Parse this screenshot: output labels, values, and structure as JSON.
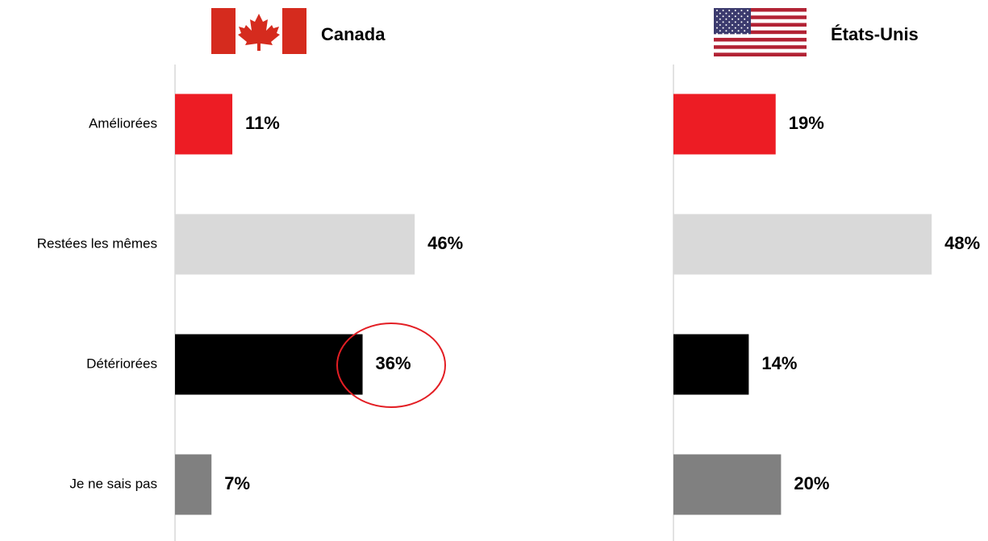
{
  "chart_data": {
    "type": "bar",
    "orientation": "horizontal",
    "categories": [
      "Améliorées",
      "Restées les mêmes",
      "Détériorées",
      "Je ne sais pas"
    ],
    "colors": [
      "#ed1c24",
      "#d9d9d9",
      "#000000",
      "#808080"
    ],
    "xlim": [
      0,
      100
    ],
    "series": [
      {
        "name": "Canada",
        "values": [
          11,
          46,
          36,
          7
        ],
        "value_labels": [
          "11%",
          "46%",
          "36%",
          "7%"
        ]
      },
      {
        "name": "États-Unis",
        "values": [
          19,
          48,
          14,
          20
        ],
        "value_labels": [
          "19%",
          "48%",
          "14%",
          "20%"
        ]
      }
    ]
  }
}
